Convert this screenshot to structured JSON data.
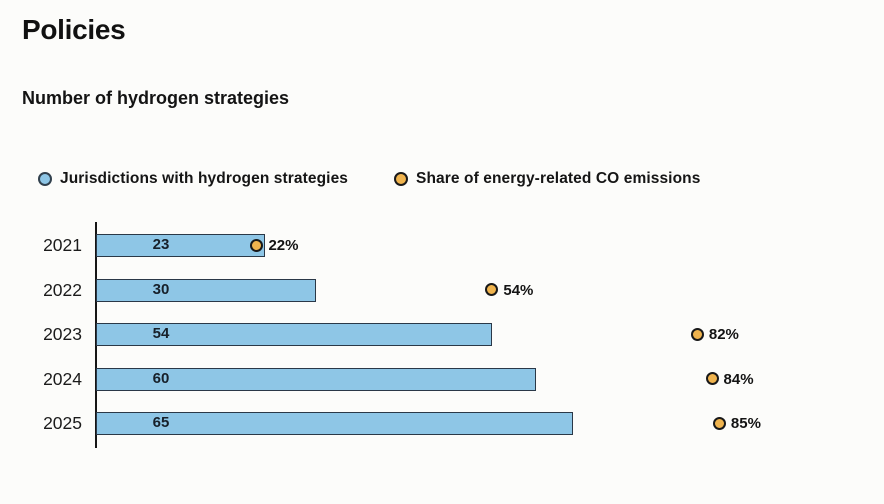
{
  "page": {
    "title": "Policies",
    "subtitle": "Number of hydrogen strategies"
  },
  "legend": [
    {
      "label": "Jurisdictions with hydrogen strategies",
      "icon": "blue-circle-icon",
      "color": "#8ec6e6",
      "ring_color": "#31404d"
    },
    {
      "label": "Share of energy-related CO emissions",
      "icon": "amber-circle-icon",
      "color": "#f0b44e",
      "ring_color": "#1a1a1a"
    }
  ],
  "chart_data": {
    "type": "bar",
    "orientation": "horizontal",
    "title": "Number of hydrogen strategies",
    "categories": [
      "2021",
      "2022",
      "2023",
      "2024",
      "2025"
    ],
    "series": [
      {
        "name": "Jurisdictions with hydrogen strategies",
        "type": "bar",
        "values": [
          23,
          30,
          54,
          60,
          65
        ],
        "color": "#8ec6e6",
        "border_color": "#2a3847"
      },
      {
        "name": "Share of energy-related CO emissions",
        "type": "scatter",
        "values": [
          22,
          54,
          82,
          84,
          85
        ],
        "unit": "%",
        "color": "#f0b44e",
        "border_color": "#191919"
      }
    ],
    "bar_labels": [
      "23",
      "30",
      "54",
      "60",
      "65"
    ],
    "dot_labels": [
      "22%",
      "54%",
      "82%",
      "84%",
      "85%"
    ],
    "xlim": [
      0,
      100
    ],
    "grid": false,
    "axis_color": "#161616",
    "legend_position": "top"
  },
  "colors": {
    "background": "#fcfcfa",
    "text": "#131313",
    "bar_fill": "#8ec6e6",
    "bar_border": "#2a3847",
    "dot_fill": "#f0b44e",
    "dot_border": "#191919",
    "axis": "#161616"
  }
}
